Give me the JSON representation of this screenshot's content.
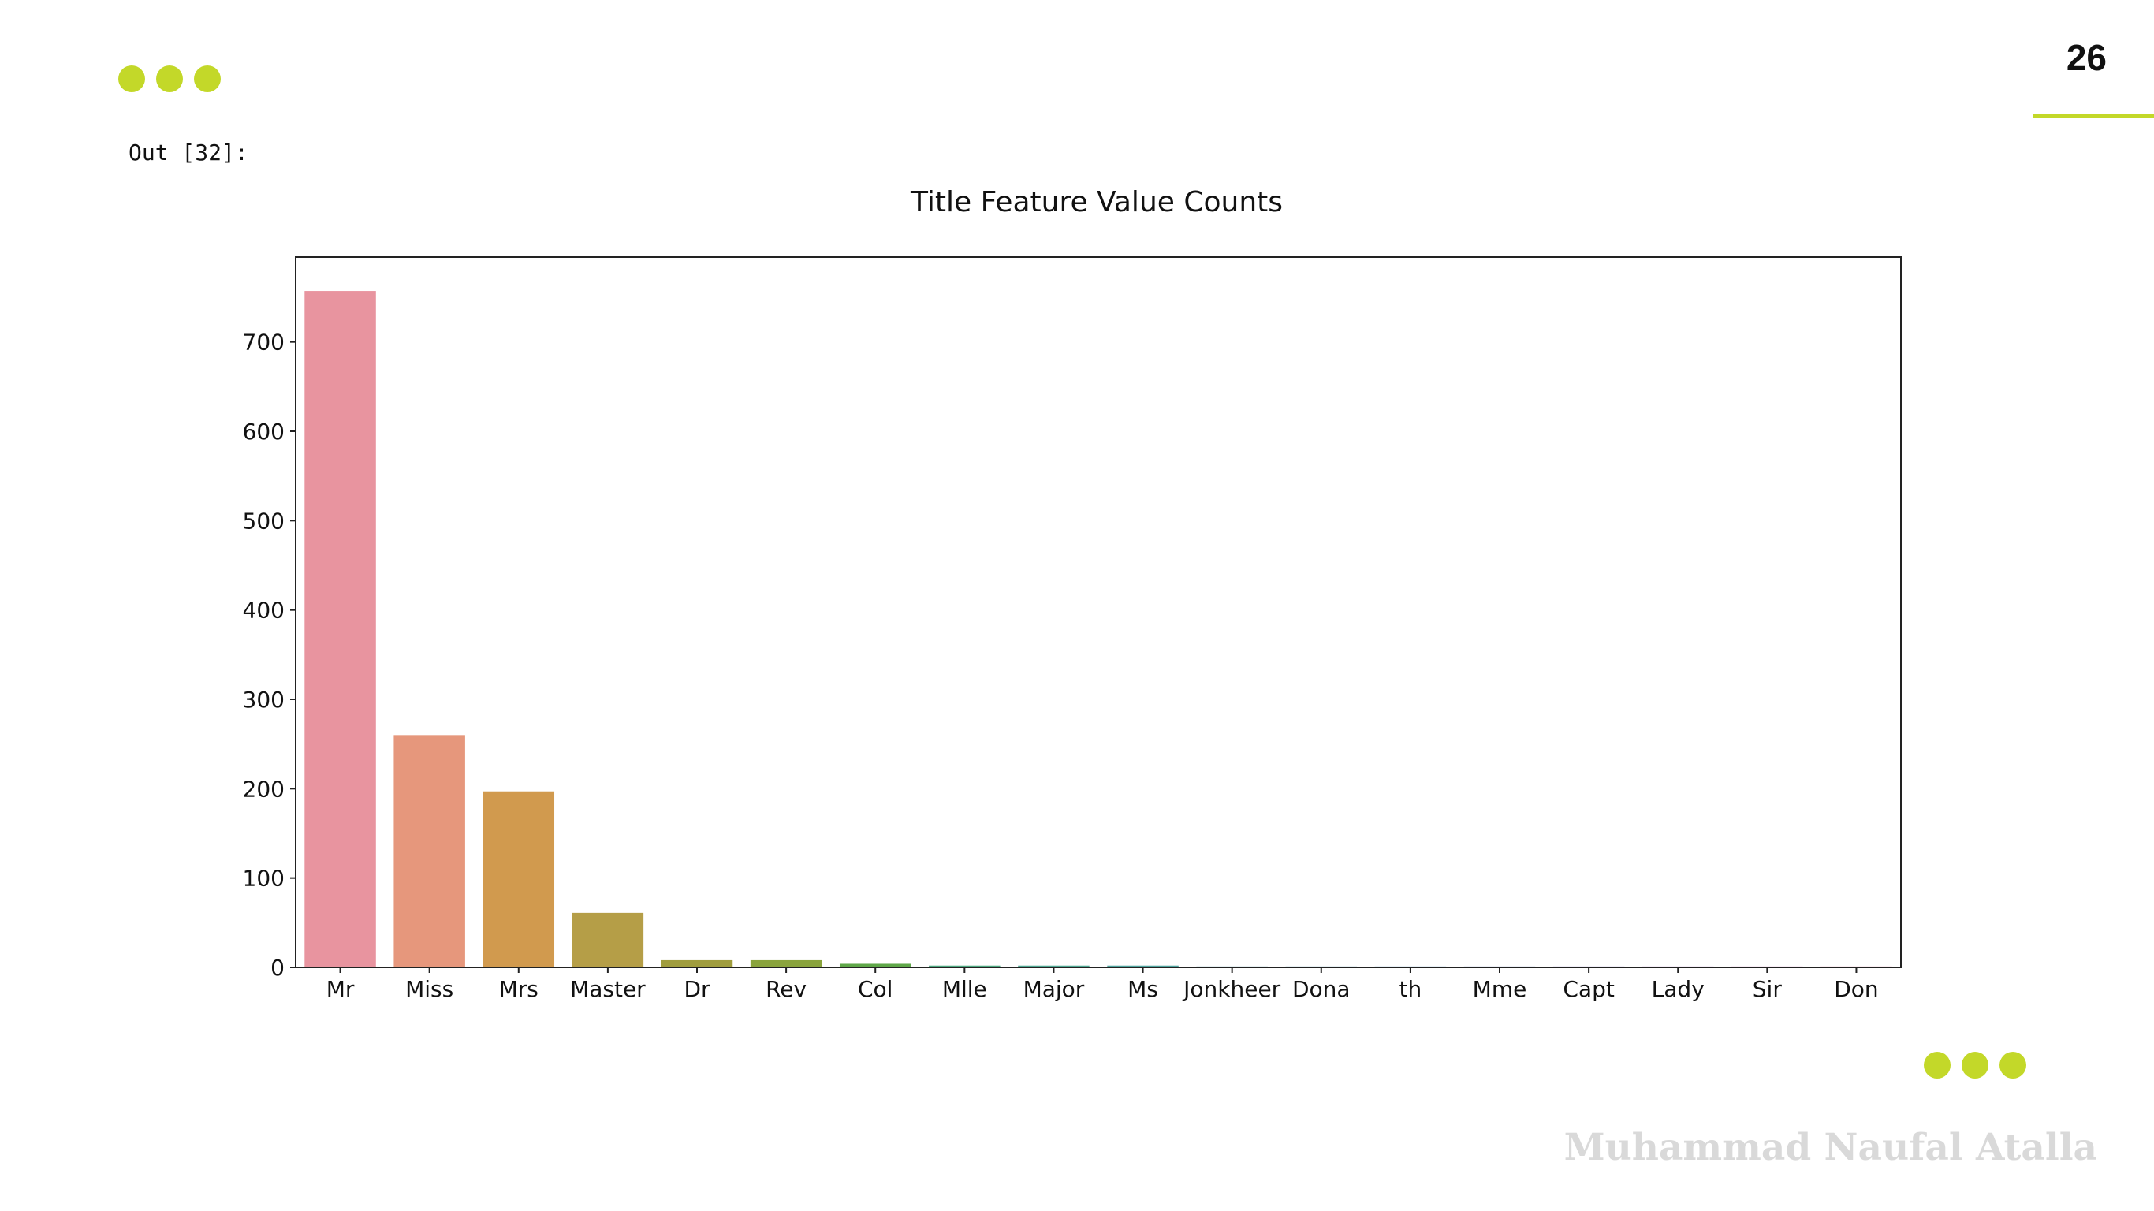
{
  "slide": {
    "page_number": "26",
    "output_label": "Out [32]:",
    "author": "Muhammad Naufal Atalla",
    "accent_color": "#c3d829"
  },
  "chart_data": {
    "type": "bar",
    "title": "Title Feature Value Counts",
    "xlabel": "",
    "ylabel": "",
    "categories": [
      "Mr",
      "Miss",
      "Mrs",
      "Master",
      "Dr",
      "Rev",
      "Col",
      "Mlle",
      "Major",
      "Ms",
      "Jonkheer",
      "Dona",
      "th",
      "Mme",
      "Capt",
      "Lady",
      "Sir",
      "Don"
    ],
    "values": [
      757,
      260,
      197,
      61,
      8,
      8,
      4,
      2,
      2,
      2,
      1,
      1,
      1,
      1,
      1,
      1,
      1,
      1
    ],
    "colors": [
      "#e8949f",
      "#e6977c",
      "#d19a4e",
      "#b59e47",
      "#a09d3e",
      "#8aa43d",
      "#5fa749",
      "#4ea880",
      "#4fa792",
      "#4fa49e",
      "#52a3aa",
      "#53a2b4",
      "#5a9ec5",
      "#7f98cf",
      "#a192d4",
      "#c18bd4",
      "#d687c6",
      "#e48cb2"
    ],
    "yticks": [
      0,
      100,
      200,
      300,
      400,
      500,
      600,
      700
    ],
    "ylim": [
      0,
      795
    ],
    "grid": false,
    "legend": "none"
  }
}
